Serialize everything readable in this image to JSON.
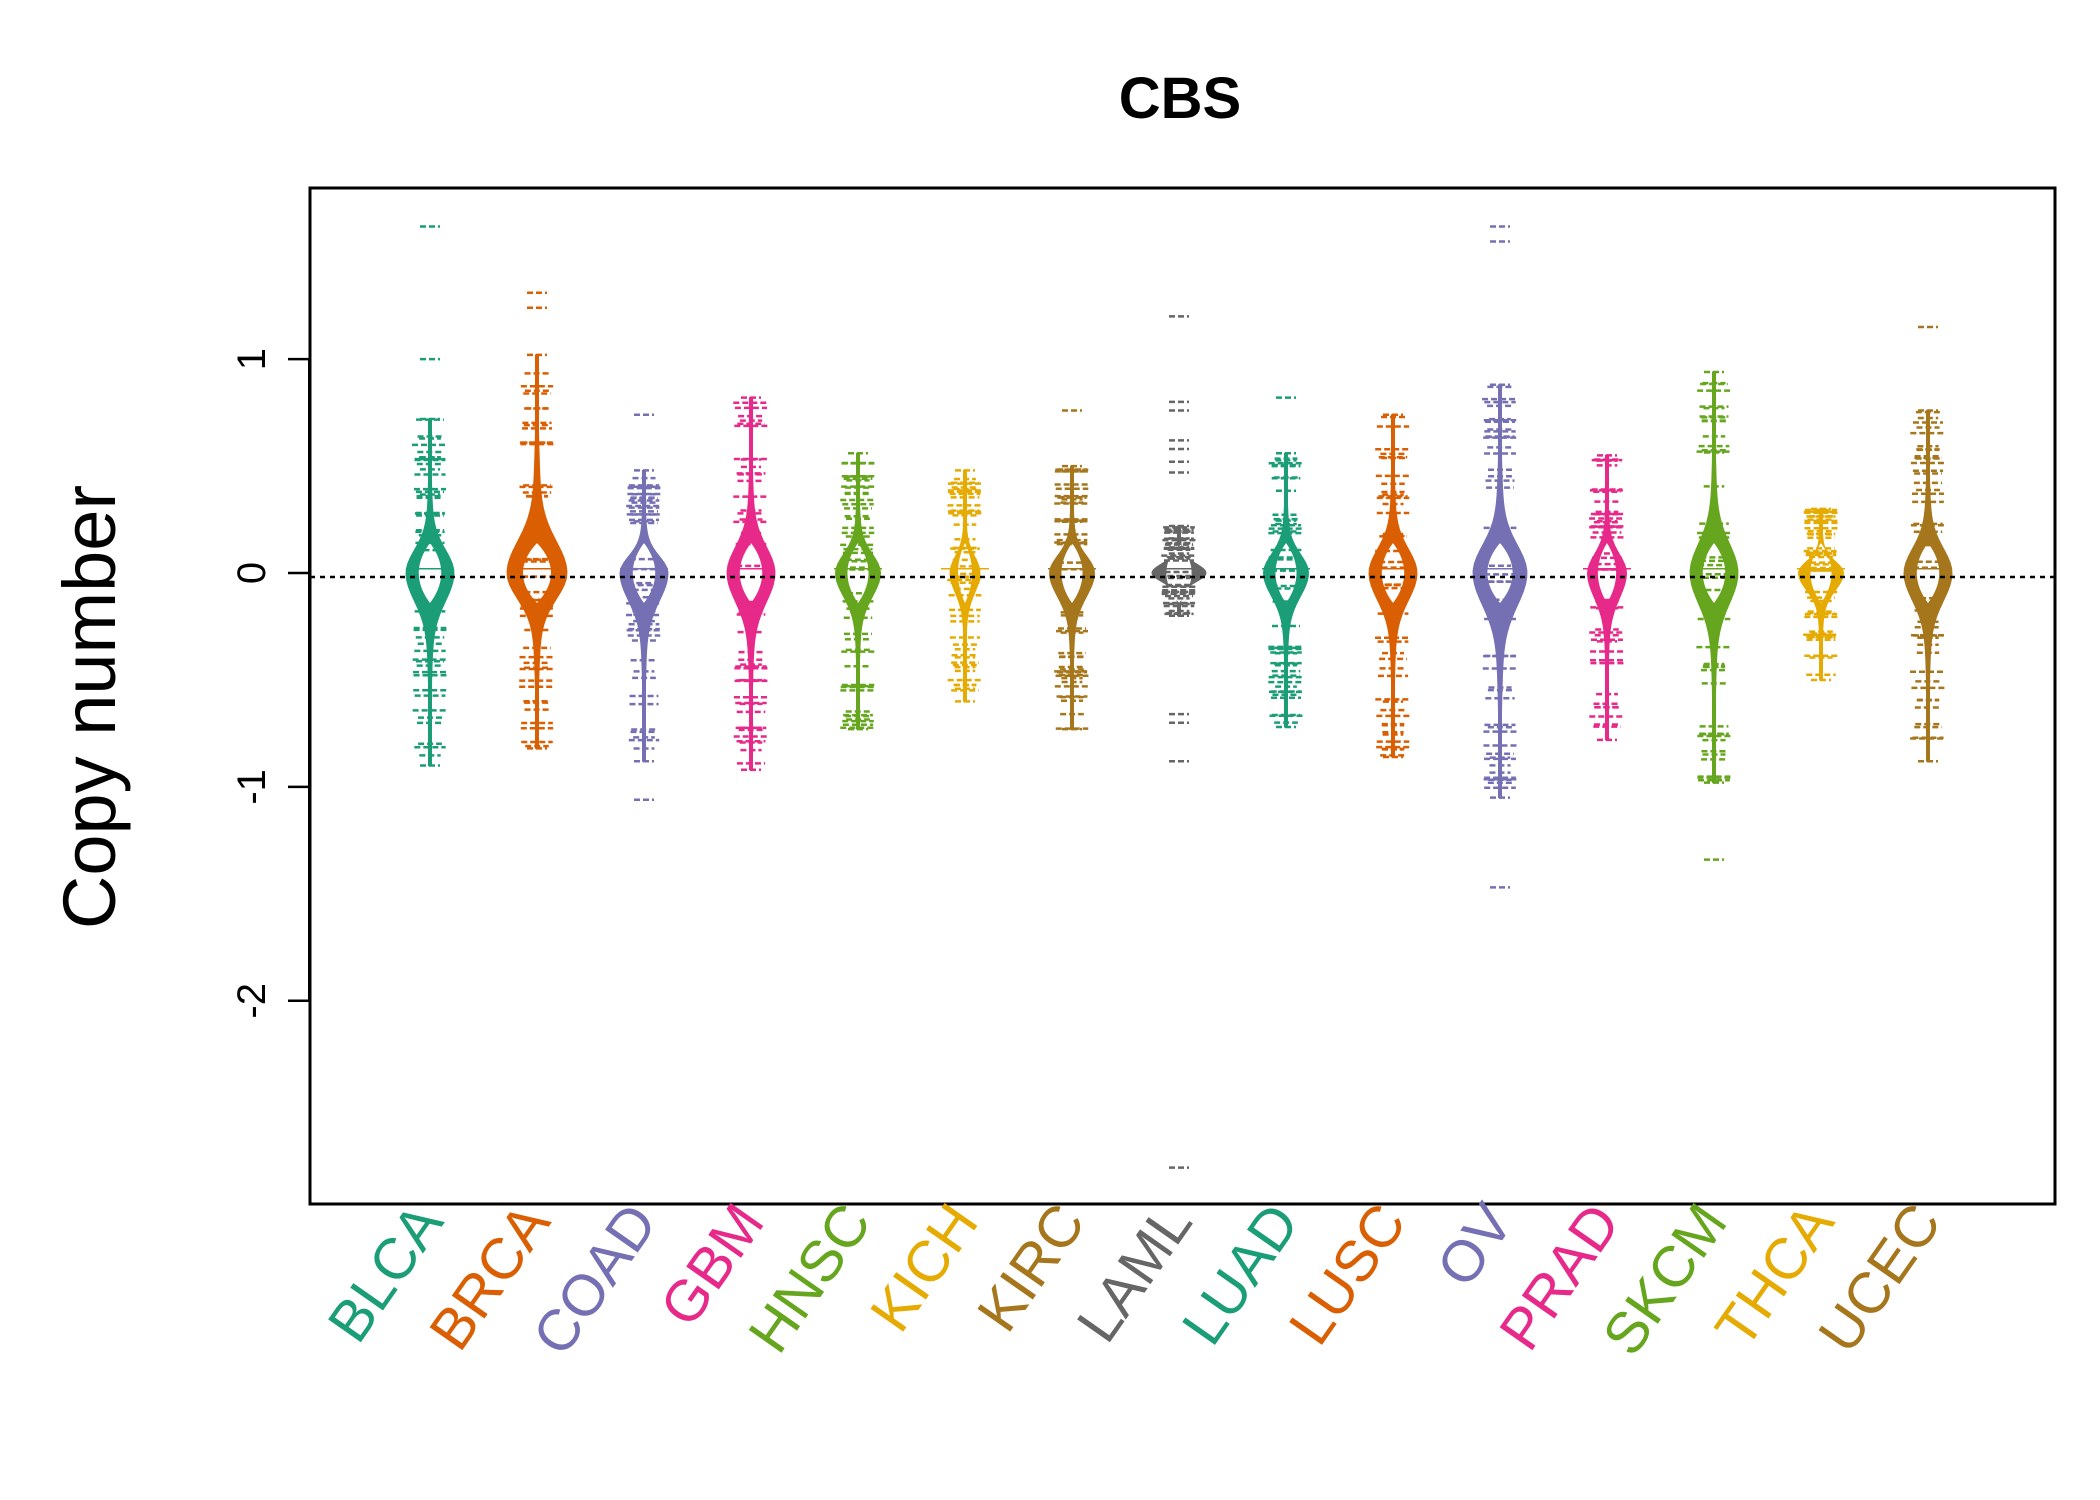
{
  "chart_data": {
    "type": "beanplot",
    "title": "CBS",
    "xlabel": "",
    "ylabel": "Copy number",
    "ylim": [
      -2.95,
      1.8
    ],
    "yticks": [
      1,
      0,
      -1,
      -2
    ],
    "ytick_labels": [
      "1",
      "0",
      "-1",
      "-2"
    ],
    "reference_line": 0,
    "categories": [
      "BLCA",
      "BRCA",
      "COAD",
      "GBM",
      "HNSC",
      "KICH",
      "KIRC",
      "LAML",
      "LUAD",
      "LUSC",
      "OV",
      "PRAD",
      "SKCM",
      "THCA",
      "UCEC"
    ],
    "colors": [
      "#1b9e77",
      "#d95f02",
      "#7570b3",
      "#e7298a",
      "#66a61e",
      "#e6ab02",
      "#a6761d",
      "#666666",
      "#1b9e77",
      "#d95f02",
      "#7570b3",
      "#e7298a",
      "#66a61e",
      "#e6ab02",
      "#a6761d"
    ],
    "series": [
      {
        "name": "BLCA",
        "min": -0.9,
        "max": 0.72,
        "outliers": [
          1.62,
          1.0
        ],
        "density_scale": 0.8
      },
      {
        "name": "BRCA",
        "min": -0.82,
        "max": 1.02,
        "outliers": [
          1.31,
          1.24
        ],
        "density_scale": 1.0
      },
      {
        "name": "COAD",
        "min": -0.88,
        "max": 0.48,
        "outliers": [
          0.74,
          -1.06
        ],
        "density_scale": 0.8
      },
      {
        "name": "GBM",
        "min": -0.92,
        "max": 0.82,
        "outliers": [],
        "density_scale": 0.8
      },
      {
        "name": "HNSC",
        "min": -0.73,
        "max": 0.56,
        "outliers": [],
        "density_scale": 0.75
      },
      {
        "name": "KICH",
        "min": -0.6,
        "max": 0.48,
        "outliers": [],
        "density_scale": 0.5
      },
      {
        "name": "KIRC",
        "min": -0.73,
        "max": 0.5,
        "outliers": [
          0.76
        ],
        "density_scale": 0.75
      },
      {
        "name": "LAML",
        "min": -0.2,
        "max": 0.22,
        "outliers": [
          1.2,
          0.8,
          0.76,
          0.62,
          0.58,
          0.52,
          0.47,
          -0.66,
          -0.7,
          -0.88,
          -2.78
        ],
        "density_scale": 0.9
      },
      {
        "name": "LUAD",
        "min": -0.72,
        "max": 0.56,
        "outliers": [
          0.82
        ],
        "density_scale": 0.75
      },
      {
        "name": "LUSC",
        "min": -0.86,
        "max": 0.74,
        "outliers": [],
        "density_scale": 0.8
      },
      {
        "name": "OV",
        "min": -1.05,
        "max": 0.88,
        "outliers": [
          1.62,
          1.55,
          -1.47
        ],
        "density_scale": 0.9
      },
      {
        "name": "PRAD",
        "min": -0.78,
        "max": 0.55,
        "outliers": [],
        "density_scale": 0.65
      },
      {
        "name": "SKCM",
        "min": -0.98,
        "max": 0.94,
        "outliers": [
          -1.34
        ],
        "density_scale": 0.8
      },
      {
        "name": "THCA",
        "min": -0.5,
        "max": 0.3,
        "outliers": [],
        "density_scale": 0.75
      },
      {
        "name": "UCEC",
        "min": -0.88,
        "max": 0.76,
        "outliers": [
          1.15
        ],
        "density_scale": 0.8
      }
    ]
  }
}
